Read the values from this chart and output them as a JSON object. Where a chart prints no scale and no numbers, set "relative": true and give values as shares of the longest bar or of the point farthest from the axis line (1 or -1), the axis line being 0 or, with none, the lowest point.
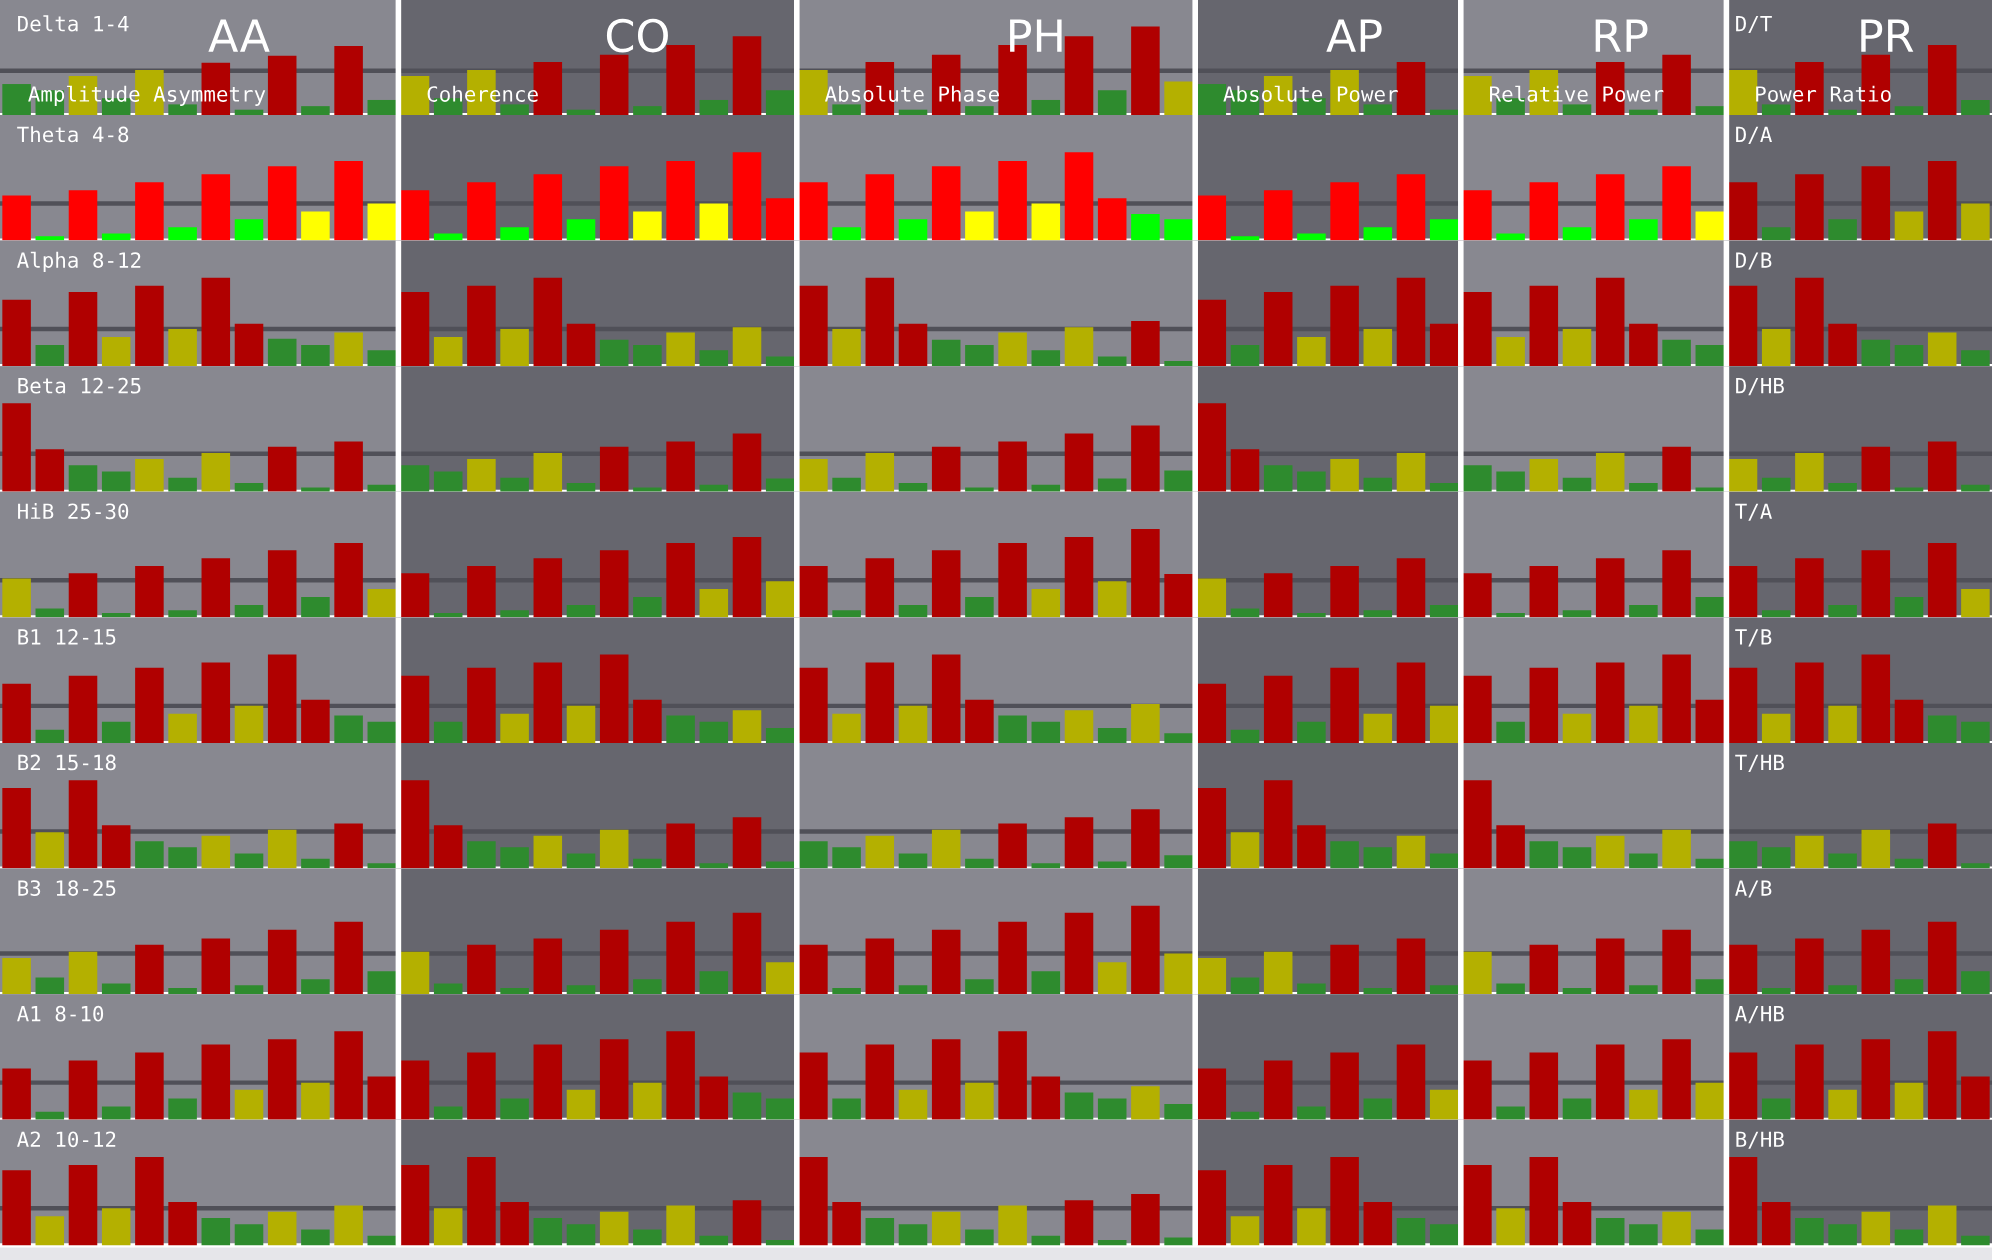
{
  "chart_data": [
    {
      "type": "bar",
      "relative": true,
      "annotations": [
        "Delta 1-4",
        "AA",
        "Amplitude Asymmetry",
        "CO",
        "Coherence",
        "PH",
        "Absolute Phase",
        "AP",
        "Absolute Power",
        "RP",
        "Relative Power",
        "PR",
        "Power Ratio",
        "D/T"
      ],
      "categories": [
        null,
        null,
        null,
        null,
        null,
        null,
        null,
        null,
        null,
        null,
        null,
        null,
        null,
        null,
        null,
        null,
        null,
        null,
        null,
        null,
        null,
        null,
        null,
        null,
        null,
        null,
        null,
        null,
        null,
        null,
        null,
        null,
        null,
        null,
        null,
        null,
        null,
        null,
        null,
        null,
        null,
        null,
        null,
        null,
        null,
        null,
        null,
        null,
        null,
        null,
        null,
        null,
        null,
        null,
        null,
        null,
        null,
        null,
        null,
        null
      ],
      "values": [
        0.35,
        0.28,
        0.44,
        0.19,
        0.51,
        0.12,
        0.59,
        0.06,
        0.67,
        0.1,
        0.78,
        0.17,
        0.44,
        0.19,
        0.51,
        0.12,
        0.6,
        0.06,
        0.68,
        0.1,
        0.79,
        0.17,
        0.89,
        0.28,
        0.51,
        0.12,
        0.6,
        0.06,
        0.68,
        0.1,
        0.79,
        0.17,
        0.89,
        0.28,
        1,
        0.38,
        0.35,
        0.28,
        0.44,
        0.19,
        0.51,
        0.12,
        0.6,
        0.06,
        0.44,
        0.19,
        0.51,
        0.12,
        0.6,
        0.06,
        0.68,
        0.1,
        0.51,
        0.12,
        0.6,
        0.06,
        0.68,
        0.1,
        0.79,
        0.17
      ],
      "colors": [
        "#2e8b2e",
        "#2e8b2e",
        "#b4b000",
        "#2e8b2e",
        "#b4b000",
        "#2e8b2e",
        "#b00000",
        "#2e8b2e",
        "#b00000",
        "#2e8b2e",
        "#b00000",
        "#2e8b2e",
        "#b4b000",
        "#2e8b2e",
        "#b4b000",
        "#2e8b2e",
        "#b00000",
        "#2e8b2e",
        "#b00000",
        "#2e8b2e",
        "#b00000",
        "#2e8b2e",
        "#b00000",
        "#2e8b2e",
        "#b4b000",
        "#2e8b2e",
        "#b00000",
        "#2e8b2e",
        "#b00000",
        "#2e8b2e",
        "#b00000",
        "#2e8b2e",
        "#b00000",
        "#2e8b2e",
        "#b00000",
        "#b4b000",
        "#2e8b2e",
        "#2e8b2e",
        "#b4b000",
        "#2e8b2e",
        "#b4b000",
        "#2e8b2e",
        "#b00000",
        "#2e8b2e",
        "#b4b000",
        "#2e8b2e",
        "#b4b000",
        "#2e8b2e",
        "#b00000",
        "#2e8b2e",
        "#b00000",
        "#2e8b2e",
        "#b4b000",
        "#2e8b2e",
        "#b00000",
        "#2e8b2e",
        "#b00000",
        "#2e8b2e",
        "#b00000",
        "#2e8b2e"
      ],
      "ref_lines": [
        {
          "axis": "y",
          "value": 0.5,
          "color": "#505058"
        }
      ]
    },
    {
      "type": "bar",
      "relative": true,
      "annotations": [
        "Theta 4-8",
        "D/A"
      ],
      "categories": [
        null,
        null,
        null,
        null,
        null,
        null,
        null,
        null,
        null,
        null,
        null,
        null,
        null,
        null,
        null,
        null,
        null,
        null,
        null,
        null,
        null,
        null,
        null,
        null,
        null,
        null,
        null,
        null,
        null,
        null,
        null,
        null,
        null,
        null,
        null,
        null,
        null,
        null,
        null,
        null,
        null,
        null,
        null,
        null,
        null,
        null,
        null,
        null,
        null,
        null,
        null,
        null,
        null,
        null,
        null,
        null,
        null,
        null,
        null,
        null
      ],
      "values": [
        0.51,
        0.05,
        0.57,
        0.08,
        0.66,
        0.15,
        0.75,
        0.24,
        0.84,
        0.33,
        0.9,
        0.42,
        0.57,
        0.08,
        0.66,
        0.15,
        0.75,
        0.24,
        0.84,
        0.33,
        0.9,
        0.42,
        1,
        0.48,
        0.66,
        0.15,
        0.75,
        0.24,
        0.84,
        0.33,
        0.9,
        0.42,
        1,
        0.48,
        0.3,
        0.24,
        0.51,
        0.05,
        0.57,
        0.08,
        0.66,
        0.15,
        0.75,
        0.24,
        0.57,
        0.08,
        0.66,
        0.15,
        0.75,
        0.24,
        0.84,
        0.33,
        0.66,
        0.15,
        0.75,
        0.24,
        0.84,
        0.33,
        0.9,
        0.42
      ],
      "colors": [
        "#ff0000",
        "#00ff00",
        "#ff0000",
        "#00ff00",
        "#ff0000",
        "#00ff00",
        "#ff0000",
        "#00ff00",
        "#ff0000",
        "#ffff00",
        "#ff0000",
        "#ffff00",
        "#ff0000",
        "#00ff00",
        "#ff0000",
        "#00ff00",
        "#ff0000",
        "#00ff00",
        "#ff0000",
        "#ffff00",
        "#ff0000",
        "#ffff00",
        "#ff0000",
        "#ff0000",
        "#ff0000",
        "#00ff00",
        "#ff0000",
        "#00ff00",
        "#ff0000",
        "#ffff00",
        "#ff0000",
        "#ffff00",
        "#ff0000",
        "#ff0000",
        "#00ff00",
        "#00ff00",
        "#ff0000",
        "#00ff00",
        "#ff0000",
        "#00ff00",
        "#ff0000",
        "#00ff00",
        "#ff0000",
        "#00ff00",
        "#ff0000",
        "#00ff00",
        "#ff0000",
        "#00ff00",
        "#ff0000",
        "#00ff00",
        "#ff0000",
        "#ffff00",
        "#b00000",
        "#2e8b2e",
        "#b00000",
        "#2e8b2e",
        "#b00000",
        "#b4b000",
        "#b00000",
        "#b4b000"
      ],
      "ref_lines": [
        {
          "axis": "y",
          "value": 0.42,
          "color": "#505058"
        }
      ]
    },
    {
      "type": "bar",
      "relative": true,
      "annotations": [
        "Alpha 8-12",
        "D/B"
      ],
      "categories": [
        null,
        null,
        null,
        null,
        null,
        null,
        null,
        null,
        null,
        null,
        null,
        null,
        null,
        null,
        null,
        null,
        null,
        null,
        null,
        null,
        null,
        null,
        null,
        null,
        null,
        null,
        null,
        null,
        null,
        null,
        null,
        null,
        null,
        null,
        null,
        null,
        null,
        null,
        null,
        null,
        null,
        null,
        null,
        null,
        null,
        null,
        null,
        null,
        null,
        null,
        null,
        null,
        null,
        null,
        null,
        null,
        null,
        null,
        null,
        null
      ],
      "values": [
        0.75,
        0.24,
        0.84,
        0.33,
        0.91,
        0.42,
        1,
        0.48,
        0.31,
        0.24,
        0.38,
        0.18,
        0.84,
        0.33,
        0.91,
        0.42,
        1,
        0.48,
        0.3,
        0.24,
        0.38,
        0.18,
        0.44,
        0.11,
        0.91,
        0.42,
        1,
        0.48,
        0.3,
        0.24,
        0.38,
        0.18,
        0.44,
        0.11,
        0.51,
        0.06,
        0.75,
        0.24,
        0.84,
        0.33,
        0.91,
        0.42,
        1,
        0.48,
        0.84,
        0.33,
        0.91,
        0.42,
        1,
        0.48,
        0.3,
        0.24,
        0.91,
        0.42,
        1,
        0.48,
        0.3,
        0.24,
        0.38,
        0.18
      ],
      "colors": [
        "#b00000",
        "#2e8b2e",
        "#b00000",
        "#b4b000",
        "#b00000",
        "#b4b000",
        "#b00000",
        "#b00000",
        "#2e8b2e",
        "#2e8b2e",
        "#b4b000",
        "#2e8b2e",
        "#b00000",
        "#b4b000",
        "#b00000",
        "#b4b000",
        "#b00000",
        "#b00000",
        "#2e8b2e",
        "#2e8b2e",
        "#b4b000",
        "#2e8b2e",
        "#b4b000",
        "#2e8b2e",
        "#b00000",
        "#b4b000",
        "#b00000",
        "#b00000",
        "#2e8b2e",
        "#2e8b2e",
        "#b4b000",
        "#2e8b2e",
        "#b4b000",
        "#2e8b2e",
        "#b00000",
        "#2e8b2e",
        "#b00000",
        "#2e8b2e",
        "#b00000",
        "#b4b000",
        "#b00000",
        "#b4b000",
        "#b00000",
        "#b00000",
        "#b00000",
        "#b4b000",
        "#b00000",
        "#b4b000",
        "#b00000",
        "#b00000",
        "#2e8b2e",
        "#2e8b2e",
        "#b00000",
        "#b4b000",
        "#b00000",
        "#b00000",
        "#2e8b2e",
        "#2e8b2e",
        "#b4b000",
        "#2e8b2e"
      ],
      "ref_lines": [
        {
          "axis": "y",
          "value": 0.42,
          "color": "#505058"
        }
      ]
    },
    {
      "type": "bar",
      "relative": true,
      "annotations": [
        "Beta 12-25",
        "D/HB"
      ],
      "categories": [
        null,
        null,
        null,
        null,
        null,
        null,
        null,
        null,
        null,
        null,
        null,
        null,
        null,
        null,
        null,
        null,
        null,
        null,
        null,
        null,
        null,
        null,
        null,
        null,
        null,
        null,
        null,
        null,
        null,
        null,
        null,
        null,
        null,
        null,
        null,
        null,
        null,
        null,
        null,
        null,
        null,
        null,
        null,
        null,
        null,
        null,
        null,
        null,
        null,
        null,
        null,
        null,
        null,
        null,
        null,
        null,
        null,
        null,
        null,
        null
      ],
      "values": [
        1,
        0.48,
        0.3,
        0.23,
        0.37,
        0.16,
        0.44,
        0.1,
        0.51,
        0.05,
        0.57,
        0.08,
        0.3,
        0.23,
        0.37,
        0.16,
        0.44,
        0.1,
        0.51,
        0.05,
        0.57,
        0.08,
        0.66,
        0.15,
        0.37,
        0.16,
        0.44,
        0.1,
        0.51,
        0.05,
        0.57,
        0.08,
        0.66,
        0.15,
        0.75,
        0.24,
        1,
        0.48,
        0.3,
        0.23,
        0.37,
        0.16,
        0.44,
        0.1,
        0.3,
        0.23,
        0.37,
        0.16,
        0.44,
        0.1,
        0.51,
        0.05,
        0.37,
        0.16,
        0.44,
        0.1,
        0.51,
        0.05,
        0.57,
        0.08
      ],
      "colors": [
        "#b00000",
        "#b00000",
        "#2e8b2e",
        "#2e8b2e",
        "#b4b000",
        "#2e8b2e",
        "#b4b000",
        "#2e8b2e",
        "#b00000",
        "#2e8b2e",
        "#b00000",
        "#2e8b2e",
        "#2e8b2e",
        "#2e8b2e",
        "#b4b000",
        "#2e8b2e",
        "#b4b000",
        "#2e8b2e",
        "#b00000",
        "#2e8b2e",
        "#b00000",
        "#2e8b2e",
        "#b00000",
        "#2e8b2e",
        "#b4b000",
        "#2e8b2e",
        "#b4b000",
        "#2e8b2e",
        "#b00000",
        "#2e8b2e",
        "#b00000",
        "#2e8b2e",
        "#b00000",
        "#2e8b2e",
        "#b00000",
        "#2e8b2e",
        "#b00000",
        "#b00000",
        "#2e8b2e",
        "#2e8b2e",
        "#b4b000",
        "#2e8b2e",
        "#b4b000",
        "#2e8b2e",
        "#2e8b2e",
        "#2e8b2e",
        "#b4b000",
        "#2e8b2e",
        "#b4b000",
        "#2e8b2e",
        "#b00000",
        "#2e8b2e",
        "#b4b000",
        "#2e8b2e",
        "#b4b000",
        "#2e8b2e",
        "#b00000",
        "#2e8b2e",
        "#b00000",
        "#2e8b2e"
      ],
      "ref_lines": [
        {
          "axis": "y",
          "value": 0.43,
          "color": "#505058"
        }
      ]
    },
    {
      "type": "bar",
      "relative": true,
      "annotations": [
        "HiB 25-30",
        "T/A"
      ],
      "categories": [
        null,
        null,
        null,
        null,
        null,
        null,
        null,
        null,
        null,
        null,
        null,
        null,
        null,
        null,
        null,
        null,
        null,
        null,
        null,
        null,
        null,
        null,
        null,
        null,
        null,
        null,
        null,
        null,
        null,
        null,
        null,
        null,
        null,
        null,
        null,
        null,
        null,
        null,
        null,
        null,
        null,
        null,
        null,
        null,
        null,
        null,
        null,
        null,
        null,
        null,
        null,
        null,
        null,
        null,
        null,
        null,
        null,
        null,
        null,
        null
      ],
      "values": [
        0.44,
        0.1,
        0.5,
        0.05,
        0.58,
        0.08,
        0.67,
        0.14,
        0.76,
        0.23,
        0.84,
        0.32,
        0.5,
        0.05,
        0.58,
        0.08,
        0.67,
        0.14,
        0.76,
        0.23,
        0.84,
        0.32,
        0.91,
        0.41,
        0.58,
        0.08,
        0.67,
        0.14,
        0.76,
        0.23,
        0.84,
        0.32,
        0.91,
        0.41,
        1,
        0.49,
        0.44,
        0.1,
        0.5,
        0.05,
        0.58,
        0.08,
        0.67,
        0.14,
        0.5,
        0.05,
        0.58,
        0.08,
        0.67,
        0.14,
        0.76,
        0.23,
        0.58,
        0.08,
        0.67,
        0.14,
        0.76,
        0.23,
        0.84,
        0.32
      ],
      "colors": [
        "#b4b000",
        "#2e8b2e",
        "#b00000",
        "#2e8b2e",
        "#b00000",
        "#2e8b2e",
        "#b00000",
        "#2e8b2e",
        "#b00000",
        "#2e8b2e",
        "#b00000",
        "#b4b000",
        "#b00000",
        "#2e8b2e",
        "#b00000",
        "#2e8b2e",
        "#b00000",
        "#2e8b2e",
        "#b00000",
        "#2e8b2e",
        "#b00000",
        "#b4b000",
        "#b00000",
        "#b4b000",
        "#b00000",
        "#2e8b2e",
        "#b00000",
        "#2e8b2e",
        "#b00000",
        "#2e8b2e",
        "#b00000",
        "#b4b000",
        "#b00000",
        "#b4b000",
        "#b00000",
        "#b00000",
        "#b4b000",
        "#2e8b2e",
        "#b00000",
        "#2e8b2e",
        "#b00000",
        "#2e8b2e",
        "#b00000",
        "#2e8b2e",
        "#b00000",
        "#2e8b2e",
        "#b00000",
        "#2e8b2e",
        "#b00000",
        "#2e8b2e",
        "#b00000",
        "#2e8b2e",
        "#b00000",
        "#2e8b2e",
        "#b00000",
        "#2e8b2e",
        "#b00000",
        "#2e8b2e",
        "#b00000",
        "#b4b000"
      ],
      "ref_lines": [
        {
          "axis": "y",
          "value": 0.42,
          "color": "#505058"
        }
      ]
    },
    {
      "type": "bar",
      "relative": true,
      "annotations": [
        "B1 12-15",
        "T/B"
      ],
      "categories": [
        null,
        null,
        null,
        null,
        null,
        null,
        null,
        null,
        null,
        null,
        null,
        null,
        null,
        null,
        null,
        null,
        null,
        null,
        null,
        null,
        null,
        null,
        null,
        null,
        null,
        null,
        null,
        null,
        null,
        null,
        null,
        null,
        null,
        null,
        null,
        null,
        null,
        null,
        null,
        null,
        null,
        null,
        null,
        null,
        null,
        null,
        null,
        null,
        null,
        null,
        null,
        null,
        null,
        null,
        null,
        null,
        null,
        null,
        null,
        null
      ],
      "values": [
        0.67,
        0.15,
        0.76,
        0.24,
        0.85,
        0.33,
        0.91,
        0.42,
        1,
        0.49,
        0.31,
        0.24,
        0.76,
        0.24,
        0.85,
        0.33,
        0.91,
        0.42,
        1,
        0.49,
        0.31,
        0.24,
        0.37,
        0.17,
        0.85,
        0.33,
        0.91,
        0.42,
        1,
        0.49,
        0.31,
        0.24,
        0.37,
        0.17,
        0.44,
        0.11,
        0.67,
        0.15,
        0.76,
        0.24,
        0.85,
        0.33,
        0.91,
        0.42,
        0.76,
        0.24,
        0.85,
        0.33,
        0.91,
        0.42,
        1,
        0.49,
        0.85,
        0.33,
        0.91,
        0.42,
        1,
        0.49,
        0.31,
        0.24
      ],
      "colors": [
        "#b00000",
        "#2e8b2e",
        "#b00000",
        "#2e8b2e",
        "#b00000",
        "#b4b000",
        "#b00000",
        "#b4b000",
        "#b00000",
        "#b00000",
        "#2e8b2e",
        "#2e8b2e",
        "#b00000",
        "#2e8b2e",
        "#b00000",
        "#b4b000",
        "#b00000",
        "#b4b000",
        "#b00000",
        "#b00000",
        "#2e8b2e",
        "#2e8b2e",
        "#b4b000",
        "#2e8b2e",
        "#b00000",
        "#b4b000",
        "#b00000",
        "#b4b000",
        "#b00000",
        "#b00000",
        "#2e8b2e",
        "#2e8b2e",
        "#b4b000",
        "#2e8b2e",
        "#b4b000",
        "#2e8b2e",
        "#b00000",
        "#2e8b2e",
        "#b00000",
        "#2e8b2e",
        "#b00000",
        "#b4b000",
        "#b00000",
        "#b4b000",
        "#b00000",
        "#2e8b2e",
        "#b00000",
        "#b4b000",
        "#b00000",
        "#b4b000",
        "#b00000",
        "#b00000",
        "#b00000",
        "#b4b000",
        "#b00000",
        "#b4b000",
        "#b00000",
        "#b00000",
        "#2e8b2e",
        "#2e8b2e"
      ],
      "ref_lines": [
        {
          "axis": "y",
          "value": 0.42,
          "color": "#505058"
        }
      ]
    },
    {
      "type": "bar",
      "relative": true,
      "annotations": [
        "B2 15-18",
        "T/HB"
      ],
      "categories": [
        null,
        null,
        null,
        null,
        null,
        null,
        null,
        null,
        null,
        null,
        null,
        null,
        null,
        null,
        null,
        null,
        null,
        null,
        null,
        null,
        null,
        null,
        null,
        null,
        null,
        null,
        null,
        null,
        null,
        null,
        null,
        null,
        null,
        null,
        null,
        null,
        null,
        null,
        null,
        null,
        null,
        null,
        null,
        null,
        null,
        null,
        null,
        null,
        null,
        null,
        null,
        null,
        null,
        null,
        null,
        null,
        null,
        null,
        null,
        null
      ],
      "values": [
        0.91,
        0.41,
        1,
        0.49,
        0.31,
        0.24,
        0.37,
        0.17,
        0.44,
        0.11,
        0.51,
        0.06,
        1,
        0.49,
        0.31,
        0.24,
        0.37,
        0.17,
        0.44,
        0.11,
        0.51,
        0.06,
        0.58,
        0.08,
        0.31,
        0.24,
        0.37,
        0.17,
        0.44,
        0.11,
        0.51,
        0.06,
        0.58,
        0.08,
        0.67,
        0.15,
        0.91,
        0.41,
        1,
        0.49,
        0.31,
        0.24,
        0.37,
        0.17,
        1,
        0.49,
        0.31,
        0.24,
        0.37,
        0.17,
        0.44,
        0.11,
        0.31,
        0.24,
        0.37,
        0.17,
        0.44,
        0.11,
        0.51,
        0.06
      ],
      "colors": [
        "#b00000",
        "#b4b000",
        "#b00000",
        "#b00000",
        "#2e8b2e",
        "#2e8b2e",
        "#b4b000",
        "#2e8b2e",
        "#b4b000",
        "#2e8b2e",
        "#b00000",
        "#2e8b2e",
        "#b00000",
        "#b00000",
        "#2e8b2e",
        "#2e8b2e",
        "#b4b000",
        "#2e8b2e",
        "#b4b000",
        "#2e8b2e",
        "#b00000",
        "#2e8b2e",
        "#b00000",
        "#2e8b2e",
        "#2e8b2e",
        "#2e8b2e",
        "#b4b000",
        "#2e8b2e",
        "#b4b000",
        "#2e8b2e",
        "#b00000",
        "#2e8b2e",
        "#b00000",
        "#2e8b2e",
        "#b00000",
        "#2e8b2e",
        "#b00000",
        "#b4b000",
        "#b00000",
        "#b00000",
        "#2e8b2e",
        "#2e8b2e",
        "#b4b000",
        "#2e8b2e",
        "#b00000",
        "#b00000",
        "#2e8b2e",
        "#2e8b2e",
        "#b4b000",
        "#2e8b2e",
        "#b4b000",
        "#2e8b2e",
        "#2e8b2e",
        "#2e8b2e",
        "#b4b000",
        "#2e8b2e",
        "#b4b000",
        "#2e8b2e",
        "#b00000",
        "#2e8b2e"
      ],
      "ref_lines": [
        {
          "axis": "y",
          "value": 0.42,
          "color": "#505058"
        }
      ]
    },
    {
      "type": "bar",
      "relative": true,
      "annotations": [
        "B3 18-25",
        "A/B"
      ],
      "categories": [
        null,
        null,
        null,
        null,
        null,
        null,
        null,
        null,
        null,
        null,
        null,
        null,
        null,
        null,
        null,
        null,
        null,
        null,
        null,
        null,
        null,
        null,
        null,
        null,
        null,
        null,
        null,
        null,
        null,
        null,
        null,
        null,
        null,
        null,
        null,
        null,
        null,
        null,
        null,
        null,
        null,
        null,
        null,
        null,
        null,
        null,
        null,
        null,
        null,
        null,
        null,
        null,
        null,
        null,
        null,
        null,
        null,
        null,
        null,
        null
      ],
      "values": [
        0.41,
        0.19,
        0.48,
        0.12,
        0.56,
        0.07,
        0.63,
        0.1,
        0.73,
        0.17,
        0.82,
        0.26,
        0.48,
        0.12,
        0.56,
        0.07,
        0.63,
        0.1,
        0.73,
        0.17,
        0.82,
        0.26,
        0.92,
        0.36,
        0.56,
        0.07,
        0.63,
        0.1,
        0.73,
        0.17,
        0.82,
        0.26,
        0.92,
        0.36,
        1,
        0.46,
        0.41,
        0.19,
        0.48,
        0.12,
        0.56,
        0.07,
        0.63,
        0.1,
        0.48,
        0.12,
        0.56,
        0.07,
        0.63,
        0.1,
        0.73,
        0.17,
        0.56,
        0.07,
        0.63,
        0.1,
        0.73,
        0.17,
        0.82,
        0.26
      ],
      "colors": [
        "#b4b000",
        "#2e8b2e",
        "#b4b000",
        "#2e8b2e",
        "#b00000",
        "#2e8b2e",
        "#b00000",
        "#2e8b2e",
        "#b00000",
        "#2e8b2e",
        "#b00000",
        "#2e8b2e",
        "#b4b000",
        "#2e8b2e",
        "#b00000",
        "#2e8b2e",
        "#b00000",
        "#2e8b2e",
        "#b00000",
        "#2e8b2e",
        "#b00000",
        "#2e8b2e",
        "#b00000",
        "#b4b000",
        "#b00000",
        "#2e8b2e",
        "#b00000",
        "#2e8b2e",
        "#b00000",
        "#2e8b2e",
        "#b00000",
        "#2e8b2e",
        "#b00000",
        "#b4b000",
        "#b00000",
        "#b4b000",
        "#b4b000",
        "#2e8b2e",
        "#b4b000",
        "#2e8b2e",
        "#b00000",
        "#2e8b2e",
        "#b00000",
        "#2e8b2e",
        "#b4b000",
        "#2e8b2e",
        "#b00000",
        "#2e8b2e",
        "#b00000",
        "#2e8b2e",
        "#b00000",
        "#2e8b2e",
        "#b00000",
        "#2e8b2e",
        "#b00000",
        "#2e8b2e",
        "#b00000",
        "#2e8b2e",
        "#b00000",
        "#2e8b2e"
      ],
      "ref_lines": [
        {
          "axis": "y",
          "value": 0.46,
          "color": "#505058"
        }
      ]
    },
    {
      "type": "bar",
      "relative": true,
      "annotations": [
        "A1 8-10",
        "A/HB"
      ],
      "categories": [
        null,
        null,
        null,
        null,
        null,
        null,
        null,
        null,
        null,
        null,
        null,
        null,
        null,
        null,
        null,
        null,
        null,
        null,
        null,
        null,
        null,
        null,
        null,
        null,
        null,
        null,
        null,
        null,
        null,
        null,
        null,
        null,
        null,
        null,
        null,
        null,
        null,
        null,
        null,
        null,
        null,
        null,
        null,
        null,
        null,
        null,
        null,
        null,
        null,
        null,
        null,
        null,
        null,
        null,
        null,
        null,
        null,
        null,
        null,
        null
      ],
      "values": [
        0.58,
        0.09,
        0.67,
        0.15,
        0.76,
        0.24,
        0.85,
        0.34,
        0.91,
        0.42,
        1,
        0.49,
        0.67,
        0.15,
        0.76,
        0.24,
        0.85,
        0.34,
        0.91,
        0.42,
        1,
        0.49,
        0.31,
        0.24,
        0.76,
        0.24,
        0.85,
        0.34,
        0.91,
        0.42,
        1,
        0.49,
        0.31,
        0.24,
        0.38,
        0.18,
        0.58,
        0.09,
        0.67,
        0.15,
        0.76,
        0.24,
        0.85,
        0.34,
        0.67,
        0.15,
        0.76,
        0.24,
        0.85,
        0.34,
        0.91,
        0.42,
        0.76,
        0.24,
        0.85,
        0.34,
        0.91,
        0.42,
        1,
        0.49
      ],
      "colors": [
        "#b00000",
        "#2e8b2e",
        "#b00000",
        "#2e8b2e",
        "#b00000",
        "#2e8b2e",
        "#b00000",
        "#b4b000",
        "#b00000",
        "#b4b000",
        "#b00000",
        "#b00000",
        "#b00000",
        "#2e8b2e",
        "#b00000",
        "#2e8b2e",
        "#b00000",
        "#b4b000",
        "#b00000",
        "#b4b000",
        "#b00000",
        "#b00000",
        "#2e8b2e",
        "#2e8b2e",
        "#b00000",
        "#2e8b2e",
        "#b00000",
        "#b4b000",
        "#b00000",
        "#b4b000",
        "#b00000",
        "#b00000",
        "#2e8b2e",
        "#2e8b2e",
        "#b4b000",
        "#2e8b2e",
        "#b00000",
        "#2e8b2e",
        "#b00000",
        "#2e8b2e",
        "#b00000",
        "#2e8b2e",
        "#b00000",
        "#b4b000",
        "#b00000",
        "#2e8b2e",
        "#b00000",
        "#2e8b2e",
        "#b00000",
        "#b4b000",
        "#b00000",
        "#b4b000",
        "#b00000",
        "#2e8b2e",
        "#b00000",
        "#b4b000",
        "#b00000",
        "#b4b000",
        "#b00000",
        "#b00000"
      ],
      "ref_lines": [
        {
          "axis": "y",
          "value": 0.42,
          "color": "#505058"
        }
      ]
    },
    {
      "type": "bar",
      "relative": true,
      "annotations": [
        "A2 10-12",
        "B/HB"
      ],
      "categories": [
        null,
        null,
        null,
        null,
        null,
        null,
        null,
        null,
        null,
        null,
        null,
        null,
        null,
        null,
        null,
        null,
        null,
        null,
        null,
        null,
        null,
        null,
        null,
        null,
        null,
        null,
        null,
        null,
        null,
        null,
        null,
        null,
        null,
        null,
        null,
        null,
        null,
        null,
        null,
        null,
        null,
        null,
        null,
        null,
        null,
        null,
        null,
        null,
        null,
        null,
        null,
        null,
        null,
        null,
        null,
        null,
        null,
        null,
        null,
        null
      ],
      "values": [
        0.85,
        0.33,
        0.91,
        0.42,
        1,
        0.49,
        0.31,
        0.24,
        0.38,
        0.18,
        0.45,
        0.11,
        0.91,
        0.42,
        1,
        0.49,
        0.31,
        0.24,
        0.38,
        0.18,
        0.45,
        0.11,
        0.51,
        0.06,
        1,
        0.49,
        0.31,
        0.24,
        0.38,
        0.18,
        0.45,
        0.11,
        0.51,
        0.06,
        0.58,
        0.09,
        0.85,
        0.33,
        0.91,
        0.42,
        1,
        0.49,
        0.31,
        0.24,
        0.91,
        0.42,
        1,
        0.49,
        0.31,
        0.24,
        0.38,
        0.18,
        1,
        0.49,
        0.31,
        0.24,
        0.38,
        0.18,
        0.45,
        0.11
      ],
      "colors": [
        "#b00000",
        "#b4b000",
        "#b00000",
        "#b4b000",
        "#b00000",
        "#b00000",
        "#2e8b2e",
        "#2e8b2e",
        "#b4b000",
        "#2e8b2e",
        "#b4b000",
        "#2e8b2e",
        "#b00000",
        "#b4b000",
        "#b00000",
        "#b00000",
        "#2e8b2e",
        "#2e8b2e",
        "#b4b000",
        "#2e8b2e",
        "#b4b000",
        "#2e8b2e",
        "#b00000",
        "#2e8b2e",
        "#b00000",
        "#b00000",
        "#2e8b2e",
        "#2e8b2e",
        "#b4b000",
        "#2e8b2e",
        "#b4b000",
        "#2e8b2e",
        "#b00000",
        "#2e8b2e",
        "#b00000",
        "#2e8b2e",
        "#b00000",
        "#b4b000",
        "#b00000",
        "#b4b000",
        "#b00000",
        "#b00000",
        "#2e8b2e",
        "#2e8b2e",
        "#b00000",
        "#b4b000",
        "#b00000",
        "#b00000",
        "#2e8b2e",
        "#2e8b2e",
        "#b4b000",
        "#2e8b2e",
        "#b00000",
        "#b00000",
        "#2e8b2e",
        "#2e8b2e",
        "#b4b000",
        "#2e8b2e",
        "#b4b000",
        "#2e8b2e"
      ],
      "ref_lines": [
        {
          "axis": "y",
          "value": 0.42,
          "color": "#505058"
        }
      ]
    }
  ]
}
